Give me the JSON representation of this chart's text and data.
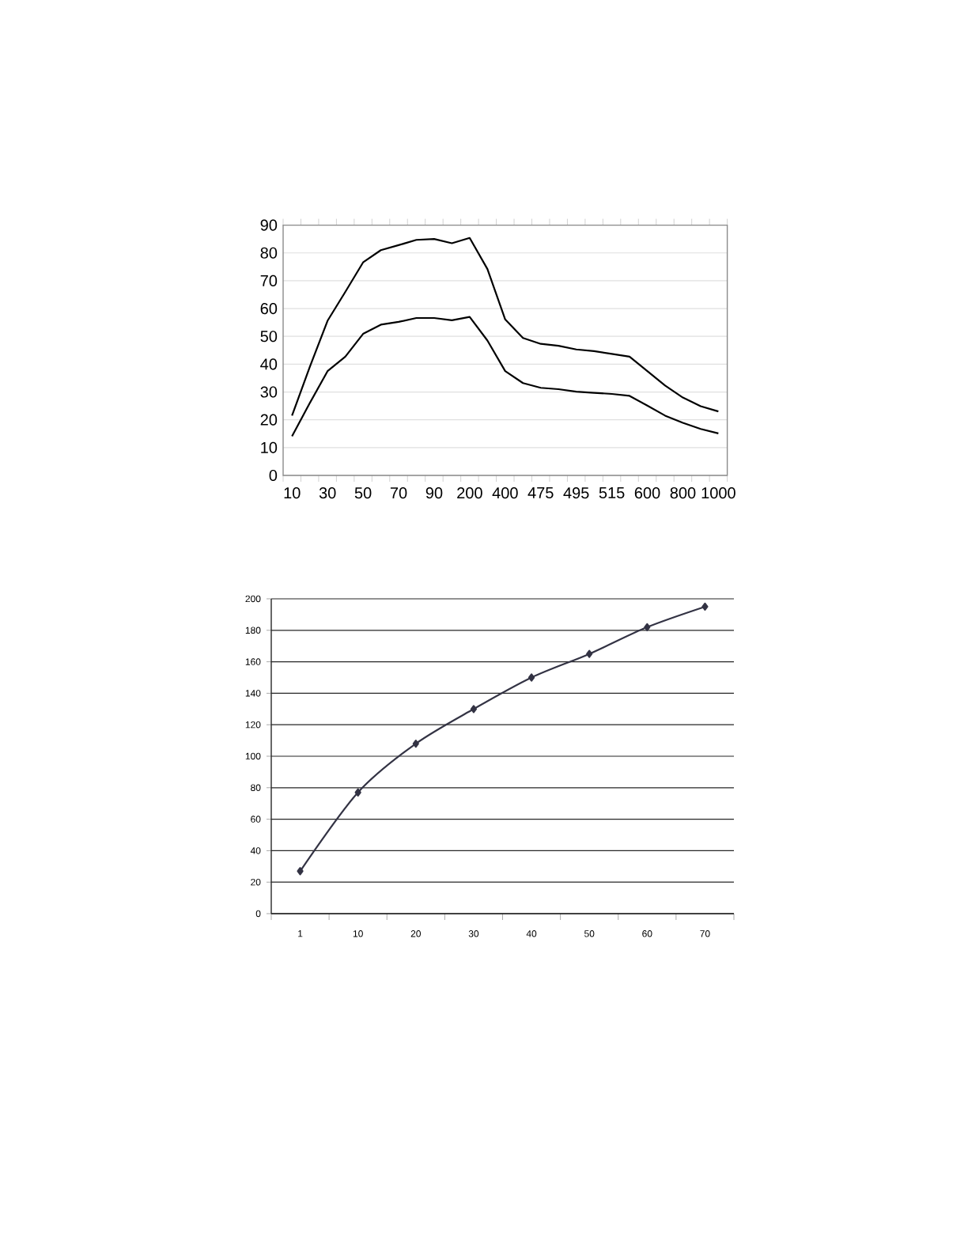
{
  "chart_data": [
    {
      "type": "line",
      "categories": [
        "10",
        null,
        "30",
        null,
        "50",
        null,
        "70",
        null,
        "90",
        null,
        "200",
        null,
        "400",
        null,
        "475",
        null,
        "495",
        null,
        "515",
        null,
        "600",
        null,
        "800",
        null,
        "1000"
      ],
      "series": [
        {
          "color": "#000000",
          "values": [
            21.5,
            39,
            55.6,
            66,
            76.6,
            81,
            82.8,
            84.7,
            85,
            83.5,
            85.4,
            74.2,
            56.1,
            49.4,
            47.3,
            46.6,
            45.3,
            44.7,
            43.7,
            42.7,
            37.5,
            32.3,
            28,
            24.9,
            23
          ]
        },
        {
          "color": "#000000",
          "values": [
            14.1,
            26,
            37.5,
            42.7,
            50.9,
            54.2,
            55.2,
            56.6,
            56.6,
            55.8,
            57,
            48.5,
            37.5,
            33.2,
            31.5,
            31,
            30.1,
            29.7,
            29.3,
            28.6,
            25.1,
            21.5,
            18.9,
            16.7,
            15.1
          ]
        }
      ],
      "ylim": [
        0,
        90
      ],
      "yticks": [
        0,
        10,
        20,
        30,
        40,
        50,
        60,
        70,
        80,
        90
      ],
      "grid": "y"
    },
    {
      "type": "line",
      "categories": [
        "1",
        "10",
        "20",
        "30",
        "40",
        "50",
        "60",
        "70"
      ],
      "series": [
        {
          "color": "#333344",
          "values": [
            27,
            77,
            108,
            130,
            150,
            165,
            182,
            195
          ]
        }
      ],
      "ylim": [
        0,
        200
      ],
      "yticks": [
        0,
        20,
        40,
        60,
        80,
        100,
        120,
        140,
        160,
        180,
        200
      ],
      "grid": "y",
      "marker": "diamond"
    }
  ]
}
